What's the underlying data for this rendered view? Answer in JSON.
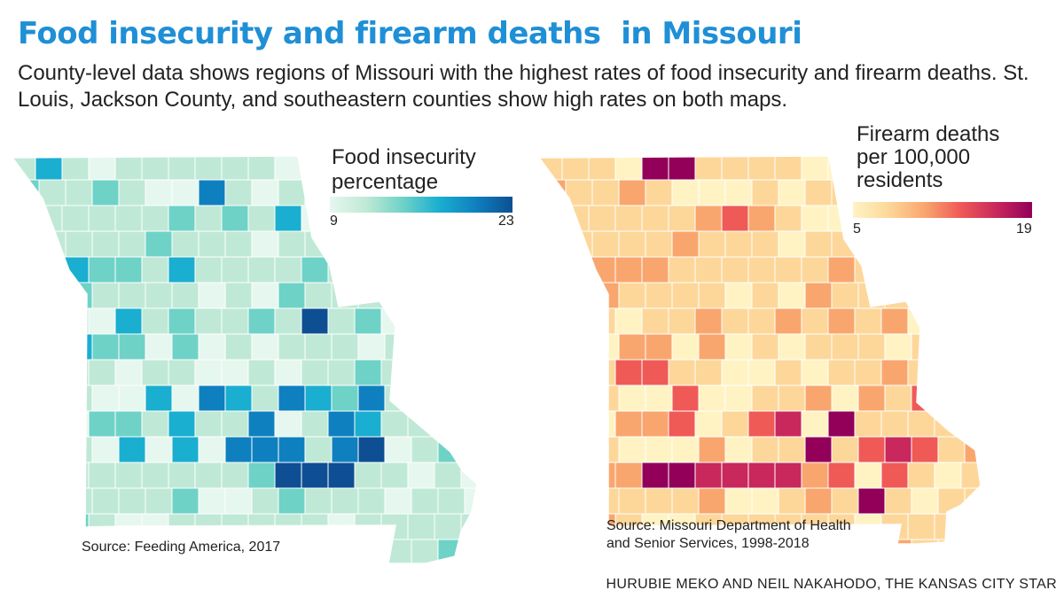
{
  "header": {
    "title": "Food insecurity and firearm deaths  in Missouri",
    "subtitle": "County-level data shows regions of Missouri with the highest rates of food insecurity and firearm deaths. St. Louis, Jackson County, and southeastern counties show high rates on both maps."
  },
  "maps": {
    "food": {
      "legend_title_line1": "Food insecurity",
      "legend_title_line2": "percentage",
      "legend_min": "9",
      "legend_max": "23",
      "scale_colors": [
        "#e6f7ef",
        "#bfe9d6",
        "#6ed2c7",
        "#1aaed0",
        "#0f80bf",
        "#0d4f92"
      ],
      "source": "Source: Feeding America, 2017"
    },
    "firearm": {
      "legend_title_line1": "Firearm deaths",
      "legend_title_line2": "per 100,000",
      "legend_title_line3": "residents",
      "legend_min": "5",
      "legend_max": "19",
      "scale_colors": [
        "#fff3c4",
        "#fdd79a",
        "#f9a66e",
        "#ef5a57",
        "#c8285c",
        "#92005a"
      ],
      "source_line1": "Source: Missouri Department of Health",
      "source_line2": "and Senior Services, 1998-2018"
    }
  },
  "footer": {
    "credit": "HURUBIE MEKO AND NEIL NAKAHODO, THE KANSAS CITY STAR"
  }
}
